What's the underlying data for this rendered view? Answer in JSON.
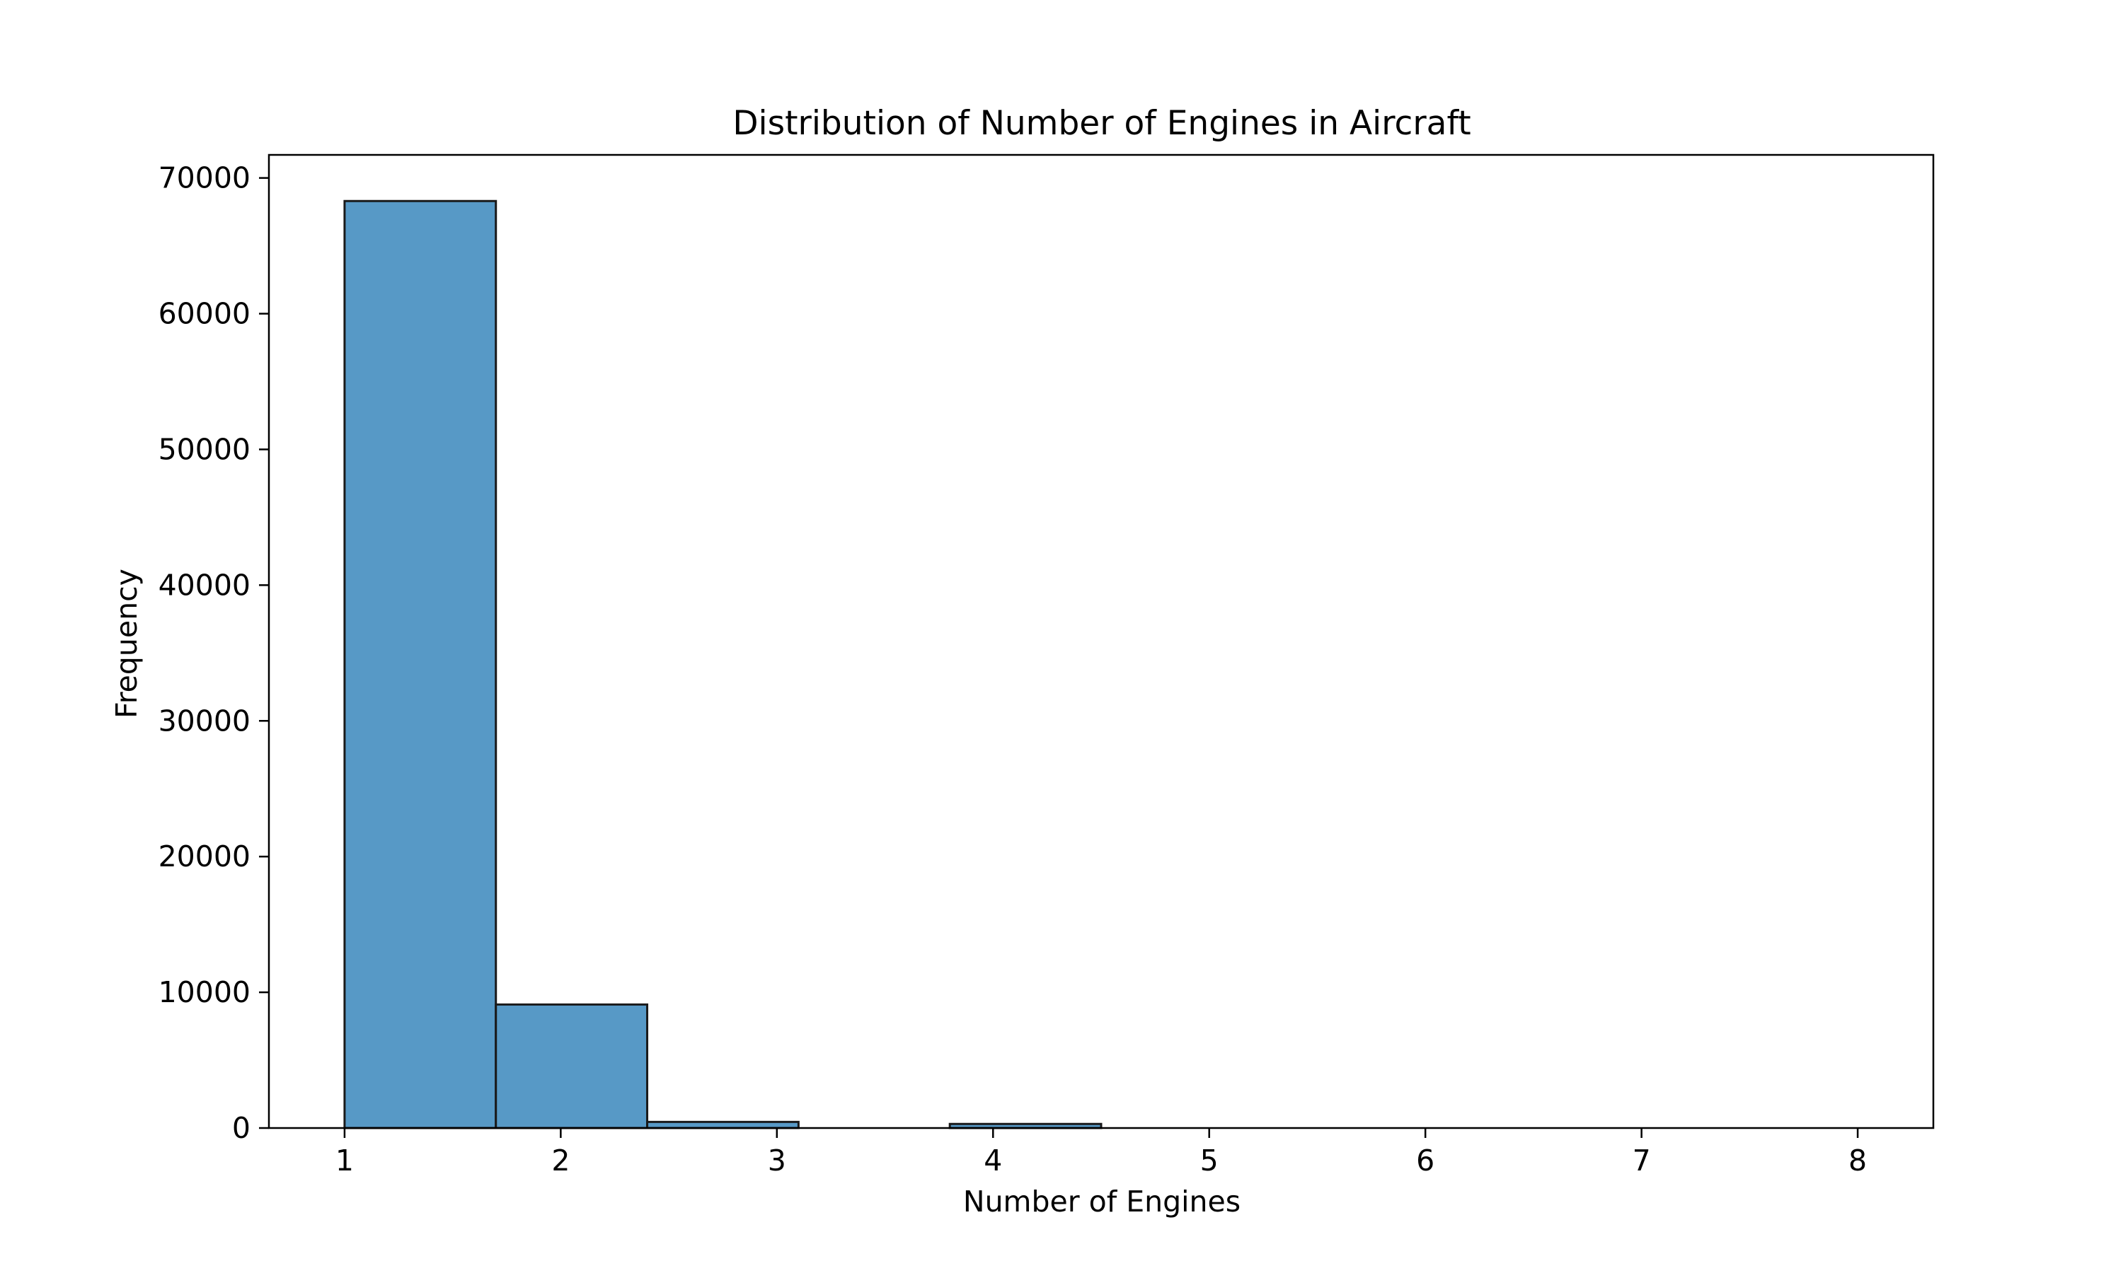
{
  "chart_data": {
    "type": "histogram",
    "title": "Distribution of Number of Engines in Aircraft",
    "xlabel": "Number of Engines",
    "ylabel": "Frequency",
    "xlim": [
      0.65,
      8.35
    ],
    "ylim": [
      0,
      71700
    ],
    "x_ticks": [
      1,
      2,
      3,
      4,
      5,
      6,
      7,
      8
    ],
    "y_ticks": [
      0,
      10000,
      20000,
      30000,
      40000,
      50000,
      60000,
      70000
    ],
    "bins": [
      {
        "x0": 1.0,
        "x1": 1.7,
        "value": 68300
      },
      {
        "x0": 1.7,
        "x1": 2.4,
        "value": 9100
      },
      {
        "x0": 2.4,
        "x1": 3.1,
        "value": 450
      },
      {
        "x0": 3.1,
        "x1": 3.8,
        "value": 0
      },
      {
        "x0": 3.8,
        "x1": 4.5,
        "value": 300
      },
      {
        "x0": 4.5,
        "x1": 5.2,
        "value": 0
      },
      {
        "x0": 5.2,
        "x1": 5.9,
        "value": 0
      },
      {
        "x0": 5.9,
        "x1": 6.6,
        "value": 0
      },
      {
        "x0": 6.6,
        "x1": 7.3,
        "value": 0
      },
      {
        "x0": 7.3,
        "x1": 8.0,
        "value": 0
      }
    ],
    "bar_color": "#5799c6",
    "edge_color": "#1a1a1a",
    "grid": false,
    "legend": "none"
  }
}
